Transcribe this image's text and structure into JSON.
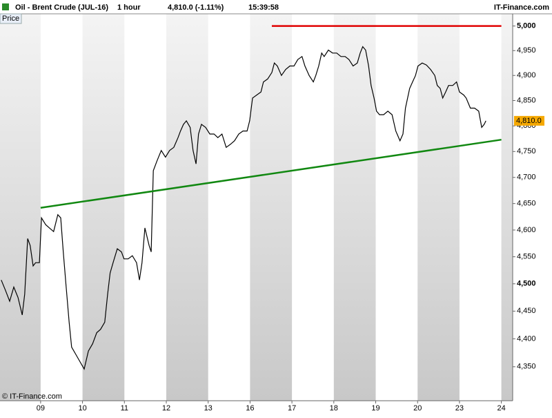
{
  "chart_data": {
    "type": "line",
    "title": "Oil - Brent Crude (JUL-16)",
    "interval": "1 hour",
    "header_price": "4,810.0 (-1.11%)",
    "time": "15:39:58",
    "source": "IT-Finance.com",
    "y_label": "Price",
    "copyright": "© IT-Finance.com",
    "log_scale": true,
    "xlim": [
      -0.97,
      11.27
    ],
    "ylim": [
      4290,
      5025
    ],
    "xticks": [
      {
        "value": 0,
        "label": "09"
      },
      {
        "value": 1,
        "label": "10"
      },
      {
        "value": 2,
        "label": "11"
      },
      {
        "value": 3,
        "label": "12"
      },
      {
        "value": 4,
        "label": "13"
      },
      {
        "value": 5,
        "label": "16"
      },
      {
        "value": 6,
        "label": "17"
      },
      {
        "value": 7,
        "label": "18"
      },
      {
        "value": 8,
        "label": "19"
      },
      {
        "value": 9,
        "label": "20"
      },
      {
        "value": 10,
        "label": "23"
      },
      {
        "value": 11,
        "label": "24"
      }
    ],
    "yticks": [
      {
        "value": 4350,
        "label": "4,350"
      },
      {
        "value": 4400,
        "label": "4,400"
      },
      {
        "value": 4450,
        "label": "4,450"
      },
      {
        "value": 4500,
        "label": "4,500"
      },
      {
        "value": 4550,
        "label": "4,550"
      },
      {
        "value": 4600,
        "label": "4,600"
      },
      {
        "value": 4650,
        "label": "4,650"
      },
      {
        "value": 4700,
        "label": "4,700"
      },
      {
        "value": 4750,
        "label": "4,750"
      },
      {
        "value": 4800,
        "label": "4,800"
      },
      {
        "value": 4850,
        "label": "4,850"
      },
      {
        "value": 4900,
        "label": "4,900"
      },
      {
        "value": 4950,
        "label": "4,950"
      },
      {
        "value": 5000,
        "label": "5,000"
      }
    ],
    "series": [
      {
        "name": "Price",
        "color": "#000000",
        "x": [
          -0.94,
          -0.84,
          -0.74,
          -0.64,
          -0.54,
          -0.44,
          -0.38,
          -0.31,
          -0.25,
          -0.18,
          -0.12,
          -0.03,
          0.02,
          0.12,
          0.21,
          0.31,
          0.41,
          0.48,
          0.54,
          0.61,
          0.68,
          0.74,
          0.84,
          0.94,
          1.04,
          1.14,
          1.24,
          1.34,
          1.43,
          1.53,
          1.6,
          1.66,
          1.73,
          1.83,
          1.93,
          1.99,
          2.09,
          2.19,
          2.29,
          2.36,
          2.42,
          2.49,
          2.59,
          2.64,
          2.69,
          2.78,
          2.88,
          2.98,
          3.08,
          3.18,
          3.28,
          3.34,
          3.41,
          3.48,
          3.57,
          3.64,
          3.71,
          3.77,
          3.84,
          3.94,
          4.04,
          4.14,
          4.23,
          4.33,
          4.43,
          4.53,
          4.63,
          4.73,
          4.83,
          4.93,
          4.99,
          5.06,
          5.16,
          5.26,
          5.32,
          5.42,
          5.52,
          5.58,
          5.65,
          5.75,
          5.85,
          5.95,
          6.05,
          6.14,
          6.24,
          6.31,
          6.41,
          6.51,
          6.57,
          6.64,
          6.71,
          6.77,
          6.87,
          6.97,
          7.07,
          7.17,
          7.27,
          7.36,
          7.46,
          7.56,
          7.63,
          7.69,
          7.76,
          7.83,
          7.89,
          7.96,
          8.02,
          8.09,
          8.19,
          8.29,
          8.39,
          8.48,
          8.58,
          8.65,
          8.71,
          8.81,
          8.88,
          8.95,
          9.01,
          9.11,
          9.21,
          9.31,
          9.41,
          9.47,
          9.54,
          9.6,
          9.67,
          9.74,
          9.84,
          9.93,
          10.0,
          10.1,
          10.16,
          10.26,
          10.36,
          10.46,
          10.53,
          10.59,
          10.63
        ],
        "values": [
          4507,
          4488,
          4468,
          4494,
          4475,
          4443,
          4481,
          4584,
          4571,
          4533,
          4539,
          4539,
          4623,
          4610,
          4604,
          4597,
          4629,
          4623,
          4559,
          4494,
          4430,
          4385,
          4372,
          4359,
          4346,
          4378,
          4391,
          4411,
          4417,
          4430,
          4481,
          4520,
          4539,
          4565,
          4559,
          4546,
          4546,
          4552,
          4539,
          4507,
          4539,
          4604,
          4571,
          4559,
          4713,
          4732,
          4752,
          4739,
          4752,
          4758,
          4777,
          4790,
          4803,
          4810,
          4797,
          4752,
          4726,
          4784,
          4803,
          4797,
          4784,
          4784,
          4777,
          4784,
          4758,
          4764,
          4771,
          4784,
          4790,
          4790,
          4810,
          4855,
          4861,
          4867,
          4887,
          4893,
          4906,
          4925,
          4919,
          4900,
          4912,
          4919,
          4919,
          4932,
          4938,
          4919,
          4900,
          4887,
          4900,
          4919,
          4945,
          4938,
          4951,
          4945,
          4945,
          4938,
          4938,
          4932,
          4919,
          4925,
          4945,
          4958,
          4951,
          4919,
          4880,
          4855,
          4829,
          4822,
          4822,
          4829,
          4822,
          4790,
          4771,
          4784,
          4835,
          4874,
          4887,
          4900,
          4919,
          4925,
          4921,
          4912,
          4900,
          4880,
          4874,
          4855,
          4867,
          4880,
          4880,
          4887,
          4867,
          4861,
          4855,
          4835,
          4835,
          4829,
          4797,
          4803,
          4810
        ]
      }
    ],
    "lines": [
      {
        "color": "#e00000",
        "x": [
          5.52,
          11.0
        ],
        "y": [
          5000,
          5000
        ]
      },
      {
        "color": "#118811",
        "x": [
          0,
          11.0
        ],
        "y": [
          4642,
          4773
        ]
      }
    ],
    "last_price": {
      "value": 4810,
      "label": "4,810.0",
      "color": "#f5a800"
    }
  }
}
